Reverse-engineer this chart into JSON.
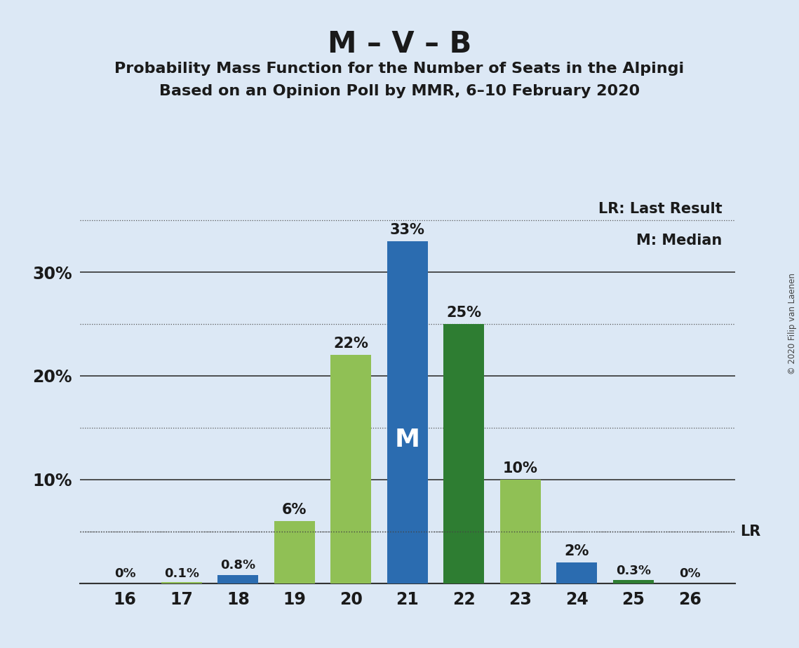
{
  "title_main": "M – V – B",
  "title_sub1": "Probability Mass Function for the Number of Seats in the Alpingi",
  "title_sub2": "Based on an Opinion Poll by MMR, 6–10 February 2020",
  "copyright": "© 2020 Filip van Laenen",
  "seats": [
    16,
    17,
    18,
    19,
    20,
    21,
    22,
    23,
    24,
    25,
    26
  ],
  "probabilities": [
    0.0,
    0.001,
    0.008,
    0.06,
    0.22,
    0.33,
    0.25,
    0.1,
    0.02,
    0.003,
    0.0
  ],
  "labels": [
    "0%",
    "0.1%",
    "0.8%",
    "6%",
    "22%",
    "33%",
    "25%",
    "10%",
    "2%",
    "0.3%",
    "0%"
  ],
  "bar_colors": [
    "#90c055",
    "#90c055",
    "#2b6cb0",
    "#90c055",
    "#90c055",
    "#2b6cb0",
    "#2e7d32",
    "#90c055",
    "#2b6cb0",
    "#2e7d32",
    "#2e7d32"
  ],
  "median_seat": 21,
  "median_label": "M",
  "lr_value": 0.05,
  "lr_label": "LR",
  "legend_lr": "LR: Last Result",
  "legend_m": "M: Median",
  "background_color": "#dce8f5",
  "ylim": [
    0,
    0.375
  ],
  "yticks": [
    0.0,
    0.05,
    0.1,
    0.15,
    0.2,
    0.25,
    0.3,
    0.35
  ],
  "solid_gridlines": [
    0.1,
    0.2,
    0.3
  ],
  "dotted_gridlines": [
    0.05,
    0.15,
    0.25,
    0.35
  ]
}
